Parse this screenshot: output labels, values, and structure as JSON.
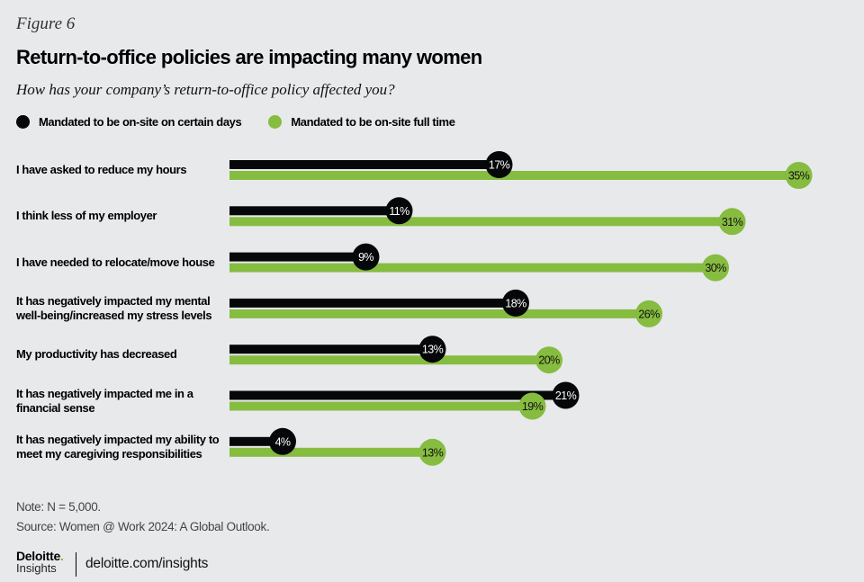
{
  "figure_label": "Figure 6",
  "title": "Return-to-office  policies are impacting many women",
  "subtitle": "How has your company’s return-to-office policy affected you?",
  "colors": {
    "certain_days": "#050708",
    "full_time": "#86bc3f",
    "background": "#e8e9eb"
  },
  "chart_data": {
    "type": "bar",
    "orientation": "horizontal",
    "title": "Return-to-office  policies are impacting many women",
    "subtitle": "How has your company’s return-to-office policy affected you?",
    "xlabel": "",
    "ylabel": "",
    "unit": "%",
    "xlim": [
      0,
      35
    ],
    "grid": false,
    "legend_position": "top-left",
    "categories": [
      "I have asked to reduce my hours",
      "I think less of my employer",
      "I have needed to relocate/move house",
      "It has negatively impacted my mental well-being/increased my stress levels",
      "My productivity has decreased",
      "It has negatively impacted me in a financial sense",
      "It has negatively impacted my ability to meet my caregiving responsibilities"
    ],
    "category_lines": [
      [
        "I have asked to reduce my hours"
      ],
      [
        "I think less of my employer"
      ],
      [
        "I have needed to relocate/move house"
      ],
      [
        "It has negatively impacted my mental",
        "well-being/increased my stress levels"
      ],
      [
        "My productivity has decreased"
      ],
      [
        "It has negatively impacted me in a",
        "financial sense"
      ],
      [
        "It has negatively impacted my ability to",
        "meet my caregiving responsibilities"
      ]
    ],
    "series": [
      {
        "name": "Mandated to be on-site on certain days",
        "color": "#050708",
        "values": [
          17,
          11,
          9,
          18,
          13,
          21,
          4
        ]
      },
      {
        "name": "Mandated to be on-site full time",
        "color": "#86bc3f",
        "values": [
          35,
          31,
          30,
          26,
          20,
          19,
          13
        ]
      }
    ],
    "data_labels": [
      [
        "17%",
        "11%",
        "9%",
        "18%",
        "13%",
        "21%",
        "4%"
      ],
      [
        "35%",
        "31%",
        "30%",
        "26%",
        "20%",
        "19%",
        "13%"
      ]
    ]
  },
  "footer": {
    "note": "Note: N = 5,000.",
    "source": "Source: Women @ Work 2024: A Global Outlook.",
    "brand_name": "Deloitte",
    "brand_dot": ".",
    "brand_sub": "Insights",
    "url": "deloitte.com/insights"
  }
}
